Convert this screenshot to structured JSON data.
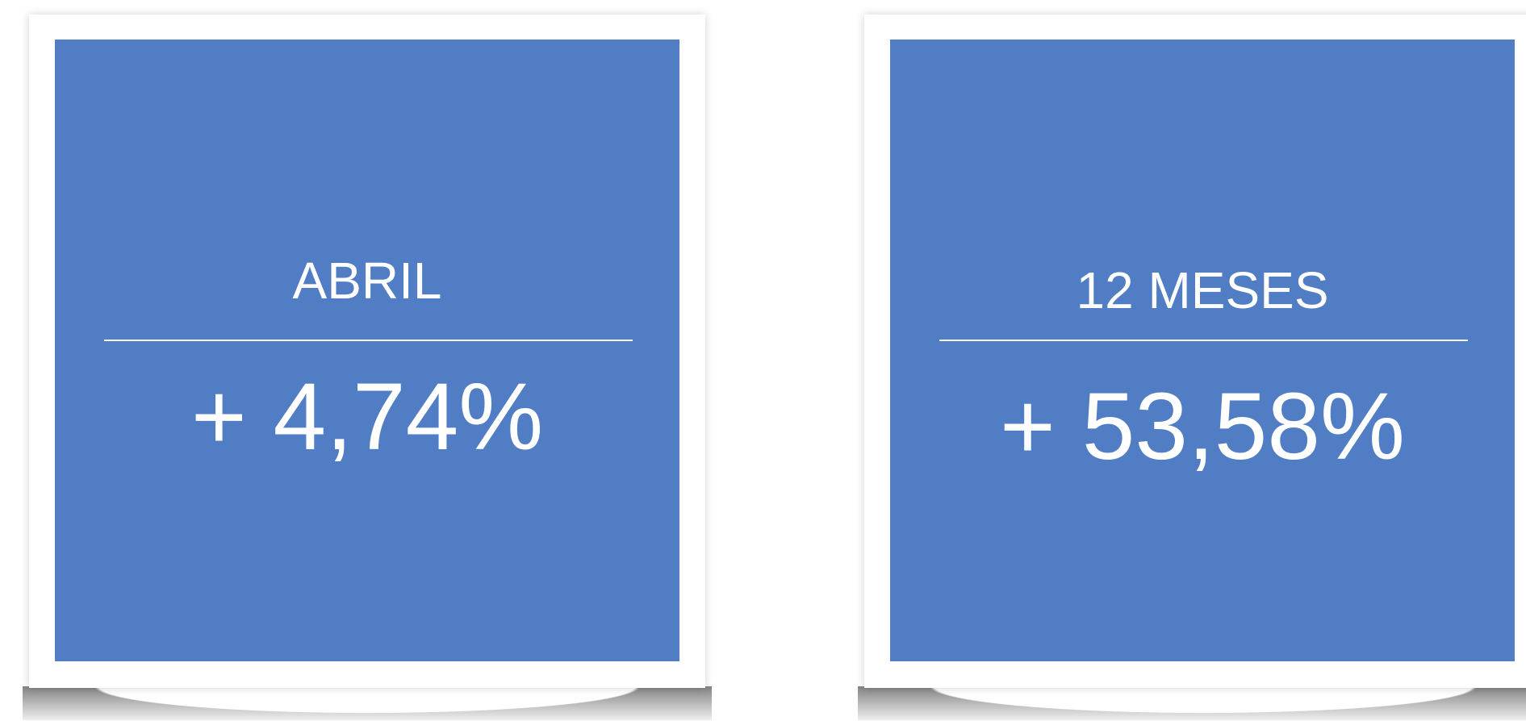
{
  "cards": [
    {
      "label": "ABRIL",
      "value": "+ 4,74%"
    },
    {
      "label": "12 MESES",
      "value": "+ 53,58%"
    }
  ]
}
